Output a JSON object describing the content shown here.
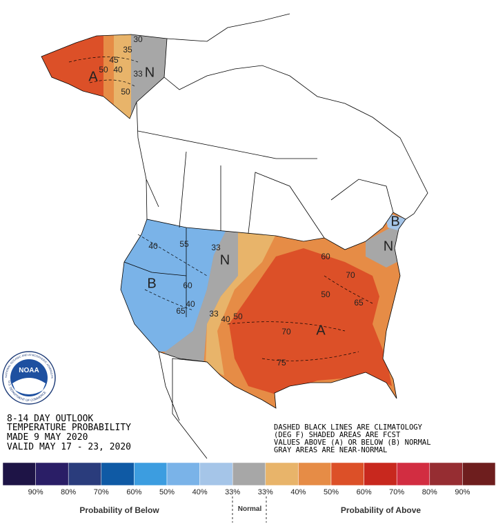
{
  "outlook": [
    "8-14 DAY OUTLOOK",
    "TEMPERATURE PROBABILITY",
    "MADE  9 MAY 2020",
    "VALID  MAY 17 - 23, 2020"
  ],
  "notes": [
    "DASHED BLACK LINES ARE CLIMATOLOGY",
    "(DEG F) SHADED AREAS ARE FCST",
    "VALUES ABOVE (A) OR BELOW (B) NORMAL",
    "GRAY AREAS ARE NEAR-NORMAL"
  ],
  "logo": {
    "name": "NOAA",
    "top": "NATIONAL OCEANIC AND ATMOSPHERIC ADMINISTRATION",
    "bottom": "U.S. DEPARTMENT OF COMMERCE"
  },
  "map": {
    "labels": [
      "A",
      "50",
      "40",
      "45",
      "33",
      "N",
      "30",
      "35",
      "50",
      "B",
      "40",
      "55",
      "33",
      "N",
      "60",
      "65",
      "40",
      "33",
      "40",
      "50",
      "A",
      "70",
      "75",
      "50",
      "60",
      "65",
      "70",
      "N",
      "B"
    ]
  },
  "legend": {
    "colors": [
      "#1e1446",
      "#2a1e66",
      "#2a3c7c",
      "#0f5aa5",
      "#3c9de0",
      "#7ab3e8",
      "#a5c5e8",
      "#a7a7a7",
      "#e8b46a",
      "#e68c46",
      "#dc5028",
      "#c8281e",
      "#d22d41",
      "#962d32",
      "#6e1e1e"
    ],
    "labels": [
      "90%",
      "80%",
      "70%",
      "60%",
      "50%",
      "40%",
      "33%",
      "33%",
      "40%",
      "50%",
      "60%",
      "70%",
      "80%",
      "90%"
    ],
    "below": "Probability of Below",
    "normal": "Normal",
    "above": "Probability of Above"
  }
}
